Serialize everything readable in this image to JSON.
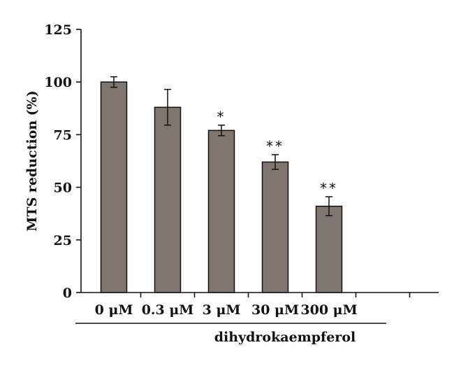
{
  "chart_data": {
    "type": "bar",
    "title": "",
    "xlabel": "dihydrokaempferol",
    "ylabel": "MTS reduction (%)",
    "ylim": [
      0,
      125
    ],
    "yticks": [
      "0",
      "25",
      "50",
      "75",
      "100",
      "125"
    ],
    "categories": [
      "0 μM",
      "0.3 μM",
      "3 μM",
      "30 μM",
      "300 μM"
    ],
    "values": [
      100,
      88,
      77,
      62,
      41
    ],
    "errors": [
      2.5,
      8.5,
      2.5,
      3.5,
      4.5
    ],
    "significance": [
      "",
      "",
      "*",
      "**",
      "**"
    ],
    "bar_color": "#7f7672",
    "grid": false
  }
}
